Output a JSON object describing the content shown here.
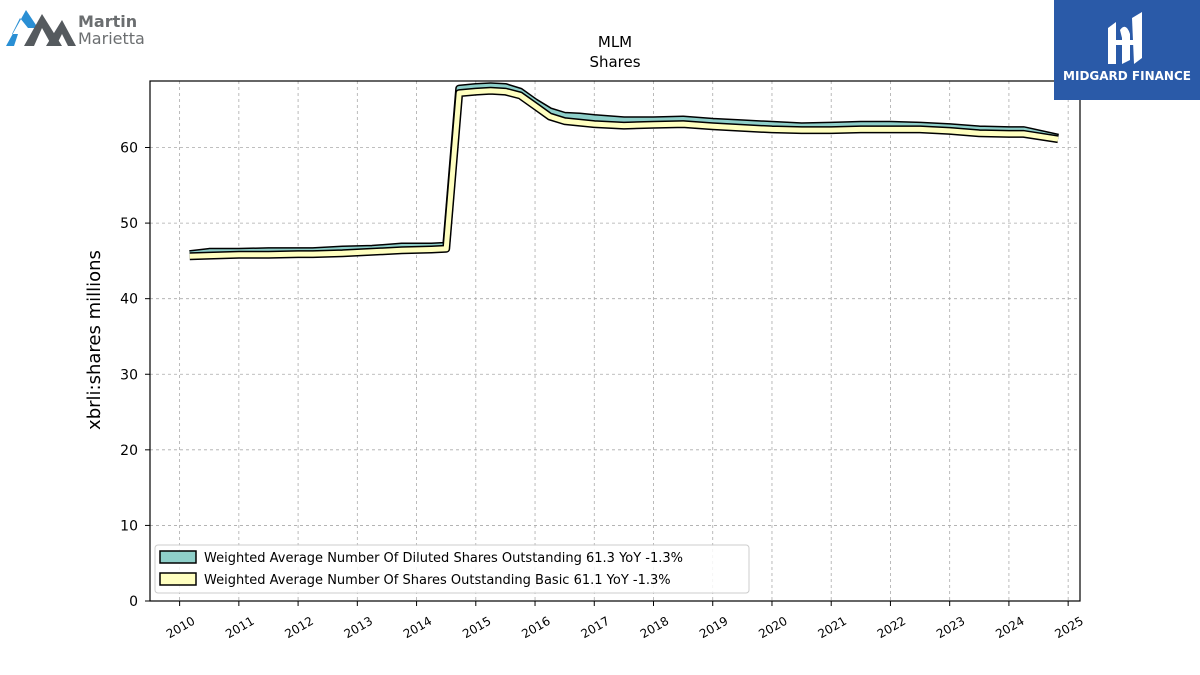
{
  "brand_left": {
    "line1": "Martin",
    "line2": "Marietta",
    "icon": "mountain-logo-icon"
  },
  "brand_right": {
    "name": "MIDGARD FINANCE",
    "icon": "midgard-logo-icon",
    "color": "#2a5aa8"
  },
  "chart_data": {
    "type": "line",
    "title": "MLM",
    "subtitle": "Shares",
    "ylabel": "xbrli:shares millions",
    "xlabel": "",
    "xlim": [
      2009.5,
      2025.2
    ],
    "ylim": [
      0,
      68.8
    ],
    "grid": true,
    "legend_position": "lower-left",
    "x_ticks": [
      2010,
      2011,
      2012,
      2013,
      2014,
      2015,
      2016,
      2017,
      2018,
      2019,
      2020,
      2021,
      2022,
      2023,
      2024,
      2025
    ],
    "x_tick_labels": [
      "2010",
      "2011",
      "2012",
      "2013",
      "2014",
      "2015",
      "2016",
      "2017",
      "2018",
      "2019",
      "2020",
      "2021",
      "2022",
      "2023",
      "2024",
      "2025"
    ],
    "y_ticks": [
      0,
      10,
      20,
      30,
      40,
      50,
      60
    ],
    "y_tick_labels": [
      "0",
      "10",
      "20",
      "30",
      "40",
      "50",
      "60"
    ],
    "series": [
      {
        "name": "Weighted Average Number Of Diluted Shares Outstanding",
        "legend_label": "Weighted Average Number Of Diluted Shares Outstanding  61.3 YoY -1.3%",
        "color": "#8ecfc9",
        "x": [
          2010.17,
          2010.5,
          2011.0,
          2011.5,
          2012.0,
          2012.25,
          2012.75,
          2013.25,
          2013.75,
          2014.25,
          2014.5,
          2014.72,
          2015.0,
          2015.25,
          2015.5,
          2015.75,
          2016.0,
          2016.25,
          2016.5,
          2016.75,
          2017.0,
          2017.5,
          2018.0,
          2018.5,
          2019.0,
          2019.5,
          2020.0,
          2020.5,
          2021.0,
          2021.5,
          2022.0,
          2022.5,
          2023.0,
          2023.5,
          2024.0,
          2024.25,
          2024.83
        ],
        "y": [
          45.9,
          46.2,
          46.2,
          46.3,
          46.3,
          46.3,
          46.5,
          46.6,
          46.9,
          46.9,
          47.0,
          67.8,
          68.0,
          68.1,
          68.0,
          67.4,
          66.0,
          64.8,
          64.2,
          64.1,
          63.9,
          63.6,
          63.6,
          63.7,
          63.4,
          63.2,
          63.0,
          62.8,
          62.9,
          63.0,
          63.0,
          62.9,
          62.7,
          62.4,
          62.3,
          62.3,
          61.3
        ]
      },
      {
        "name": "Weighted Average Number Of Shares Outstanding Basic",
        "legend_label": "Weighted Average Number Of Shares Outstanding Basic  61.1 YoY -1.3%",
        "color": "#ffffc0",
        "x": [
          2010.17,
          2010.5,
          2011.0,
          2011.5,
          2012.0,
          2012.25,
          2012.75,
          2013.25,
          2013.75,
          2014.25,
          2014.5,
          2014.72,
          2015.0,
          2015.25,
          2015.5,
          2015.75,
          2016.0,
          2016.25,
          2016.5,
          2016.75,
          2017.0,
          2017.5,
          2018.0,
          2018.5,
          2019.0,
          2019.5,
          2020.0,
          2020.5,
          2021.0,
          2021.5,
          2022.0,
          2022.5,
          2023.0,
          2023.5,
          2024.0,
          2024.25,
          2024.83
        ],
        "y": [
          45.6,
          45.7,
          45.8,
          45.8,
          45.9,
          45.9,
          46.0,
          46.2,
          46.4,
          46.5,
          46.6,
          67.2,
          67.4,
          67.5,
          67.4,
          66.9,
          65.5,
          64.1,
          63.5,
          63.3,
          63.1,
          62.9,
          63.0,
          63.1,
          62.8,
          62.6,
          62.4,
          62.3,
          62.3,
          62.4,
          62.4,
          62.4,
          62.2,
          61.9,
          61.8,
          61.8,
          61.1
        ]
      }
    ]
  }
}
